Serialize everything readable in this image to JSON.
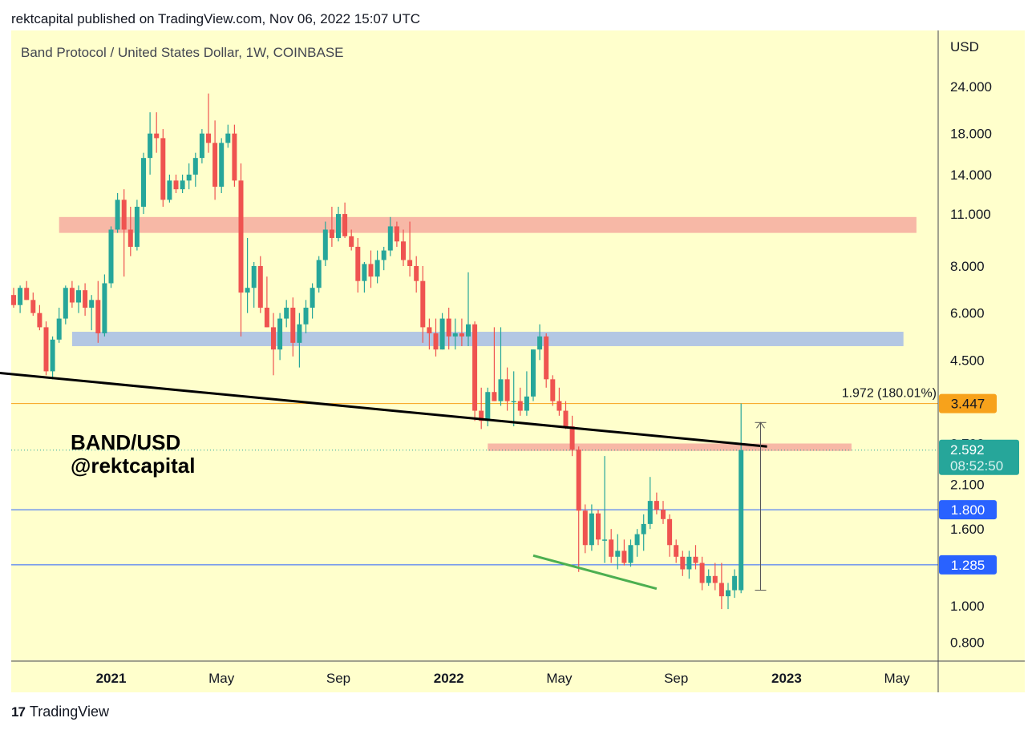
{
  "header": {
    "published": "rektcapital published on TradingView.com, Nov 06, 2022 15:07 UTC"
  },
  "footer": {
    "brand": "TradingView",
    "logo_glyph": "17"
  },
  "chart_data": {
    "type": "candlestick",
    "title": "Band Protocol / United States Dollar, 1W, COINBASE",
    "currency": "USD",
    "scale": "log",
    "ylim": [
      0.7,
      30
    ],
    "watermark": [
      "BAND/USD",
      "@rektcapital"
    ],
    "y_ticks": [
      "24.000",
      "18.000",
      "14.000",
      "11.000",
      "8.000",
      "6.000",
      "4.500",
      "2.700",
      "2.100",
      "1.600",
      "1.000",
      "0.800"
    ],
    "y_tick_values": [
      24,
      18,
      14,
      11,
      8,
      6,
      4.5,
      2.7,
      2.1,
      1.6,
      1.0,
      0.8
    ],
    "x_ticks": [
      {
        "label": "2021",
        "week": 0,
        "bold": true
      },
      {
        "label": "May",
        "week": 17,
        "bold": false
      },
      {
        "label": "Sep",
        "week": 35,
        "bold": false
      },
      {
        "label": "2022",
        "week": 52,
        "bold": true
      },
      {
        "label": "May",
        "week": 69,
        "bold": false
      },
      {
        "label": "Sep",
        "week": 87,
        "bold": false
      },
      {
        "label": "2023",
        "week": 104,
        "bold": true
      },
      {
        "label": "May",
        "week": 121,
        "bold": false
      }
    ],
    "candles": [
      [
        6.7,
        7.0,
        6.2,
        6.3
      ],
      [
        6.3,
        7.1,
        6.0,
        7.0
      ],
      [
        7.0,
        7.3,
        6.5,
        6.5
      ],
      [
        6.5,
        6.8,
        5.9,
        6.0
      ],
      [
        6.0,
        6.3,
        5.4,
        5.5
      ],
      [
        5.5,
        5.7,
        4.1,
        4.2
      ],
      [
        4.2,
        5.2,
        4.0,
        5.1
      ],
      [
        5.1,
        6.2,
        5.0,
        5.8
      ],
      [
        5.8,
        7.1,
        5.6,
        7.0
      ],
      [
        7.0,
        7.3,
        6.2,
        6.4
      ],
      [
        6.4,
        7.1,
        6.0,
        6.9
      ],
      [
        6.9,
        7.2,
        5.9,
        6.2
      ],
      [
        6.2,
        6.7,
        5.4,
        6.5
      ],
      [
        6.5,
        7.3,
        5.0,
        5.3
      ],
      [
        5.3,
        7.6,
        5.2,
        7.2
      ],
      [
        7.2,
        10.2,
        7.0,
        10.0
      ],
      [
        10.0,
        12.5,
        9.8,
        12.0
      ],
      [
        12.0,
        12.8,
        7.5,
        10.0
      ],
      [
        10.0,
        11.5,
        8.5,
        9.0
      ],
      [
        9.0,
        12.0,
        8.8,
        11.5
      ],
      [
        11.5,
        16.0,
        11.0,
        15.5
      ],
      [
        15.5,
        20.5,
        14.0,
        18.0
      ],
      [
        18.0,
        20.5,
        16.0,
        17.5
      ],
      [
        17.5,
        18.5,
        11.5,
        12.0
      ],
      [
        12.0,
        14.0,
        11.8,
        13.5
      ],
      [
        13.5,
        14.0,
        12.5,
        12.8
      ],
      [
        12.8,
        14.0,
        12.5,
        13.5
      ],
      [
        13.5,
        15.0,
        12.8,
        14.0
      ],
      [
        14.0,
        16.0,
        13.0,
        15.5
      ],
      [
        15.5,
        18.5,
        15.0,
        18.0
      ],
      [
        18.0,
        23.0,
        16.0,
        17.0
      ],
      [
        17.0,
        19.5,
        12.0,
        13.0
      ],
      [
        13.0,
        17.5,
        12.5,
        17.0
      ],
      [
        17.0,
        19.0,
        16.5,
        18.0
      ],
      [
        18.0,
        19.0,
        13.0,
        13.5
      ],
      [
        13.5,
        15.0,
        5.2,
        6.8
      ],
      [
        6.8,
        9.5,
        6.0,
        7.0
      ],
      [
        7.0,
        8.2,
        6.2,
        8.0
      ],
      [
        8.0,
        8.5,
        6.0,
        6.2
      ],
      [
        6.2,
        7.5,
        5.5,
        5.5
      ],
      [
        5.5,
        6.0,
        4.1,
        4.8
      ],
      [
        4.8,
        6.0,
        4.5,
        5.8
      ],
      [
        5.8,
        6.5,
        5.5,
        6.2
      ],
      [
        6.2,
        6.6,
        4.6,
        5.0
      ],
      [
        5.0,
        6.0,
        4.3,
        5.6
      ],
      [
        5.6,
        6.5,
        5.3,
        6.2
      ],
      [
        6.2,
        7.2,
        5.8,
        7.0
      ],
      [
        7.0,
        8.5,
        6.8,
        8.3
      ],
      [
        8.3,
        10.5,
        8.0,
        10.0
      ],
      [
        10.0,
        11.5,
        9.0,
        9.5
      ],
      [
        9.5,
        11.5,
        9.3,
        11.0
      ],
      [
        11.0,
        11.8,
        9.5,
        9.6
      ],
      [
        9.6,
        10.0,
        8.8,
        9.0
      ],
      [
        9.0,
        9.5,
        6.8,
        7.3
      ],
      [
        7.3,
        8.2,
        6.8,
        8.1
      ],
      [
        8.1,
        8.8,
        7.0,
        7.5
      ],
      [
        7.5,
        8.8,
        7.2,
        8.3
      ],
      [
        8.3,
        9.0,
        7.8,
        8.8
      ],
      [
        8.8,
        10.8,
        8.5,
        10.2
      ],
      [
        10.2,
        10.5,
        9.0,
        9.3
      ],
      [
        9.3,
        10.0,
        8.0,
        8.3
      ],
      [
        8.3,
        10.5,
        7.5,
        8.0
      ],
      [
        8.0,
        8.5,
        6.8,
        7.3
      ],
      [
        7.3,
        8.0,
        5.0,
        5.5
      ],
      [
        5.5,
        5.8,
        4.8,
        5.3
      ],
      [
        5.3,
        5.8,
        4.6,
        4.8
      ],
      [
        4.8,
        6.0,
        4.8,
        5.8
      ],
      [
        5.8,
        6.2,
        4.8,
        5.2
      ],
      [
        5.2,
        5.8,
        4.8,
        5.3
      ],
      [
        5.3,
        5.8,
        4.9,
        5.2
      ],
      [
        5.2,
        7.7,
        4.9,
        5.6
      ],
      [
        5.6,
        5.7,
        3.1,
        3.3
      ],
      [
        3.3,
        3.8,
        2.95,
        3.1
      ],
      [
        3.1,
        3.8,
        3.0,
        3.7
      ],
      [
        3.7,
        5.5,
        3.5,
        3.5
      ],
      [
        3.5,
        5.5,
        3.4,
        4.0
      ],
      [
        4.0,
        4.3,
        3.3,
        3.5
      ],
      [
        3.5,
        4.2,
        3.0,
        3.5
      ],
      [
        3.5,
        3.8,
        3.2,
        3.3
      ],
      [
        3.3,
        4.2,
        3.2,
        3.6
      ],
      [
        3.6,
        4.8,
        3.5,
        4.8
      ],
      [
        4.8,
        5.6,
        4.5,
        5.2
      ],
      [
        5.2,
        5.3,
        3.8,
        4.0
      ],
      [
        4.0,
        4.1,
        3.4,
        3.5
      ],
      [
        3.5,
        3.8,
        3.2,
        3.3
      ],
      [
        3.3,
        3.5,
        2.95,
        3.0
      ],
      [
        3.0,
        3.2,
        2.5,
        2.6
      ],
      [
        2.6,
        2.65,
        1.23,
        1.79
      ],
      [
        1.79,
        1.86,
        1.38,
        1.45
      ],
      [
        1.45,
        1.86,
        1.4,
        1.76
      ],
      [
        1.76,
        1.8,
        1.45,
        1.5
      ],
      [
        1.5,
        2.5,
        1.3,
        1.5
      ],
      [
        1.5,
        1.6,
        1.3,
        1.35
      ],
      [
        1.35,
        1.55,
        1.25,
        1.4
      ],
      [
        1.4,
        1.5,
        1.28,
        1.3
      ],
      [
        1.3,
        1.5,
        1.27,
        1.45
      ],
      [
        1.45,
        1.6,
        1.35,
        1.55
      ],
      [
        1.55,
        1.75,
        1.4,
        1.65
      ],
      [
        1.65,
        2.2,
        1.6,
        1.9
      ],
      [
        1.9,
        2.0,
        1.75,
        1.8
      ],
      [
        1.8,
        1.9,
        1.65,
        1.7
      ],
      [
        1.7,
        1.75,
        1.35,
        1.45
      ],
      [
        1.45,
        1.5,
        1.3,
        1.35
      ],
      [
        1.35,
        1.4,
        1.2,
        1.25
      ],
      [
        1.25,
        1.4,
        1.18,
        1.35
      ],
      [
        1.35,
        1.45,
        1.25,
        1.3
      ],
      [
        1.3,
        1.35,
        1.1,
        1.15
      ],
      [
        1.15,
        1.25,
        1.13,
        1.2
      ],
      [
        1.2,
        1.3,
        1.1,
        1.15
      ],
      [
        1.15,
        1.3,
        0.98,
        1.06
      ],
      [
        1.06,
        1.15,
        0.98,
        1.1
      ],
      [
        1.1,
        1.25,
        1.05,
        1.2
      ],
      [
        1.1,
        3.45,
        1.08,
        2.592
      ]
    ],
    "zones": [
      {
        "name": "resistance-zone-top",
        "from": 9.8,
        "to": 10.8,
        "color": "#f7b8a6",
        "week_start": -8,
        "week_end": 124
      },
      {
        "name": "support-zone-blue",
        "from": 4.9,
        "to": 5.35,
        "color": "#b3c7e3",
        "week_start": -6,
        "week_end": 122
      },
      {
        "name": "resistance-zone-lower",
        "from": 2.58,
        "to": 2.7,
        "color": "#f7b8a6",
        "week_start": 58,
        "week_end": 114
      }
    ],
    "horizontal_levels": [
      {
        "name": "level-3447",
        "value": 3.447,
        "color": "#f7a21b",
        "label": "3.447",
        "label_text_color": "#131722"
      },
      {
        "name": "level-1800",
        "value": 1.8,
        "color": "#2962ff",
        "label": "1.800",
        "label_text_color": "#ffffff"
      },
      {
        "name": "level-1285",
        "value": 1.285,
        "color": "#2962ff",
        "label": "1.285",
        "label_text_color": "#ffffff"
      }
    ],
    "current_price": {
      "value": 2.592,
      "label": "2.592",
      "countdown": "08:52:50",
      "color": "#26a69a"
    },
    "trendlines": [
      {
        "name": "descending-trendline",
        "color": "#000000",
        "points": [
          [
            -11,
            4.3
          ],
          [
            116,
            2.65
          ]
        ]
      },
      {
        "name": "falling-wedge-support",
        "color": "#4caf50",
        "points": [
          [
            80,
            1.36
          ],
          [
            99,
            1.11
          ]
        ]
      }
    ],
    "measure": {
      "label": "1.972 (180.01%)",
      "from": 1.1,
      "to": 3.07,
      "week": 115
    },
    "colors": {
      "up": "#26a69a",
      "down": "#ef5350",
      "background": "#ffffcc",
      "axis_text": "#131722"
    }
  }
}
